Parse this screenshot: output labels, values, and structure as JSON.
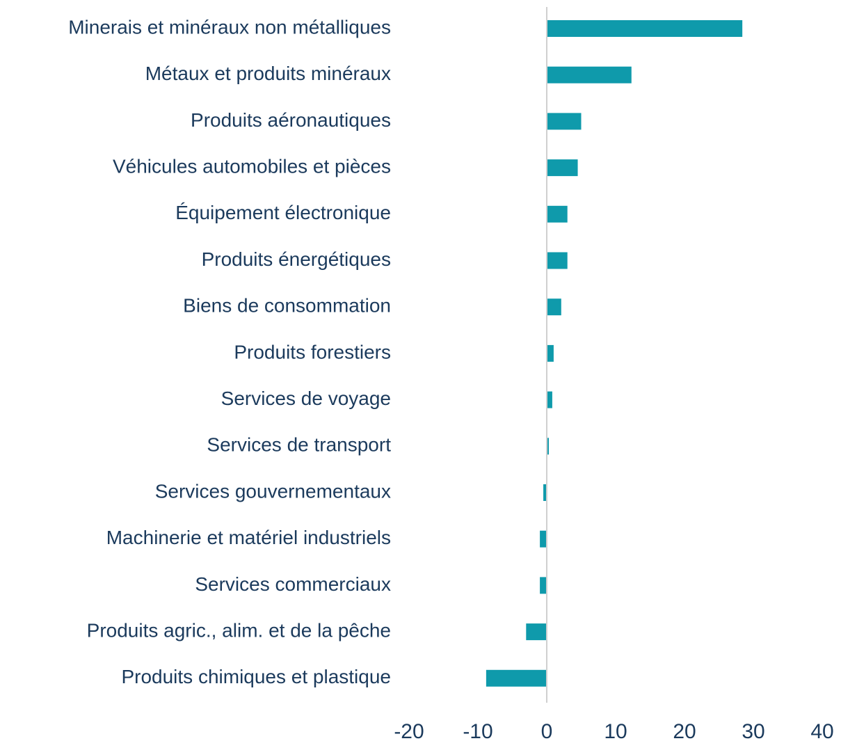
{
  "chart_data": {
    "type": "hbar",
    "categories": [
      "Minerais et minéraux non métalliques",
      "Métaux et produits minéraux",
      "Produits aéronautiques",
      "Véhicules automobiles et pièces",
      "Équipement électronique",
      "Produits énergétiques",
      "Biens de consommation",
      "Produits forestiers",
      "Services de voyage",
      "Services de transport",
      "Services gouvernementaux",
      "Machinerie et matériel industriels",
      "Services commerciaux",
      "Produits agric., alim. et de la pêche",
      "Produits chimiques et plastique"
    ],
    "values": [
      28.4,
      12.3,
      5.0,
      4.5,
      3.0,
      3.0,
      2.1,
      1.0,
      0.8,
      0.3,
      -0.5,
      -1.0,
      -1.0,
      -3.0,
      -8.8
    ],
    "color": "#0f9aab",
    "xlim": [
      -20,
      40
    ],
    "xticks": [
      -20,
      -10,
      0,
      10,
      20,
      30,
      40
    ],
    "grid": false
  }
}
